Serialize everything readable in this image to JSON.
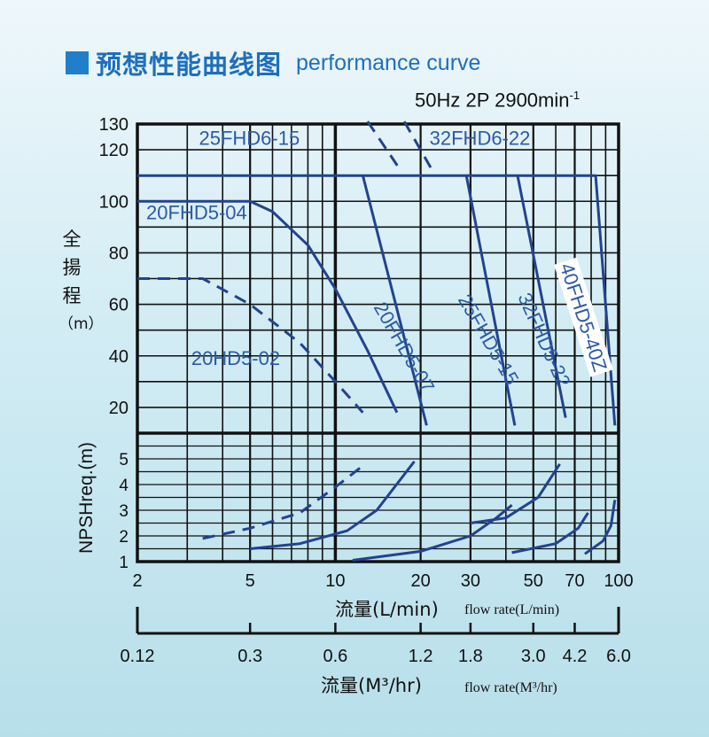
{
  "header": {
    "title_cn": "预想性能曲线图",
    "title_en": "performance curve",
    "condition_main": "50Hz 2P 2900min",
    "condition_sup": "-1"
  },
  "axes": {
    "head_label_chars": [
      "全",
      "揚",
      "程",
      "（m）"
    ],
    "npsh_label": "NPSHreq.(m)",
    "x1_label": "流量(L/min)",
    "x1_label_en": "flow rate(L/min)",
    "x2_label_cn": "流量(M³/hr)",
    "x2_label_en": "flow rate(M³/hr)"
  },
  "colors": {
    "curve": "#22438e",
    "label": "#2c5aa4",
    "grid": "#111111"
  },
  "chart_data": {
    "type": "line",
    "x_scale": "log",
    "xlim": [
      2,
      100
    ],
    "x_ticks": [
      2,
      5,
      10,
      20,
      30,
      50,
      70,
      100
    ],
    "x_tick_labels": [
      "2",
      "5",
      "10",
      "20",
      "30",
      "50",
      "70",
      "100"
    ],
    "x2_ticks": [
      0.12,
      0.3,
      0.6,
      1.2,
      1.8,
      3.0,
      4.2,
      6.0
    ],
    "x2_tick_labels": [
      "0.12",
      "0.3",
      "0.6",
      "1.2",
      "1.8",
      "3.0",
      "4.2",
      "6.0"
    ],
    "head_ylim": [
      10,
      130
    ],
    "head_ticks": [
      20,
      40,
      60,
      80,
      100,
      120,
      130
    ],
    "head_tick_labels": [
      "20",
      "40",
      "60",
      "80",
      "100",
      "120",
      "130"
    ],
    "npsh_ylim": [
      1,
      6
    ],
    "npsh_ticks": [
      1,
      2,
      3,
      4,
      5
    ],
    "npsh_tick_labels": [
      "1",
      "2",
      "3",
      "4",
      "5"
    ],
    "head_curves": [
      {
        "name": "20FHD5-04",
        "dashed": false,
        "points": [
          [
            2,
            100
          ],
          [
            5,
            100
          ],
          [
            6,
            96
          ],
          [
            8,
            83
          ],
          [
            10,
            66
          ],
          [
            13,
            42
          ],
          [
            16.5,
            18
          ]
        ]
      },
      {
        "name": "20HD5-02",
        "dashed": true,
        "points": [
          [
            2,
            70
          ],
          [
            3.4,
            70
          ],
          [
            5,
            60
          ],
          [
            7.5,
            45
          ],
          [
            10,
            30
          ],
          [
            12.5,
            18
          ]
        ]
      },
      {
        "name": "25FHD6-15",
        "dashed": true,
        "points": [
          [
            13,
            131
          ],
          [
            17,
            112
          ]
        ]
      },
      {
        "name": "32FHD6-22",
        "dashed": true,
        "points": [
          [
            17.5,
            131
          ],
          [
            22,
            112
          ]
        ]
      },
      {
        "name": "20FHD5-07",
        "dashed": false,
        "points": [
          [
            2,
            110
          ],
          [
            12.5,
            110
          ],
          [
            21,
            13
          ]
        ]
      },
      {
        "name": "25FHD5-15",
        "dashed": false,
        "points": [
          [
            12.5,
            110
          ],
          [
            29,
            110
          ],
          [
            43,
            13
          ]
        ]
      },
      {
        "name": "32FHD5-22",
        "dashed": false,
        "points": [
          [
            29,
            110
          ],
          [
            44,
            110
          ],
          [
            65,
            16
          ]
        ]
      },
      {
        "name": "40FHD5-40Z",
        "dashed": false,
        "points": [
          [
            44,
            110
          ],
          [
            83,
            110
          ],
          [
            97,
            13
          ]
        ]
      }
    ],
    "npsh_curves": [
      {
        "dashed": false,
        "points": [
          [
            5,
            1.5
          ],
          [
            7.5,
            1.7
          ],
          [
            11,
            2.2
          ],
          [
            14,
            3
          ],
          [
            19,
            4.9
          ]
        ]
      },
      {
        "dashed": true,
        "points": [
          [
            3.4,
            1.9
          ],
          [
            5,
            2.3
          ],
          [
            7.5,
            2.9
          ],
          [
            10,
            3.9
          ],
          [
            12.4,
            4.7
          ]
        ]
      },
      {
        "dashed": false,
        "points": [
          [
            11.5,
            1.05
          ],
          [
            20,
            1.4
          ],
          [
            30,
            2
          ],
          [
            37,
            2.7
          ],
          [
            42,
            3.2
          ]
        ]
      },
      {
        "dashed": false,
        "points": [
          [
            30,
            2.5
          ],
          [
            40,
            2.7
          ],
          [
            52,
            3.5
          ],
          [
            62,
            4.8
          ]
        ]
      },
      {
        "dashed": false,
        "points": [
          [
            42,
            1.35
          ],
          [
            60,
            1.7
          ],
          [
            72,
            2.3
          ],
          [
            78,
            2.9
          ]
        ]
      },
      {
        "dashed": false,
        "points": [
          [
            76,
            1.3
          ],
          [
            88,
            1.8
          ],
          [
            94,
            2.4
          ],
          [
            97,
            3.4
          ]
        ]
      }
    ],
    "annotations": [
      {
        "text": "25FHD6-15",
        "x": 3.3,
        "y": 122,
        "rotate": 0
      },
      {
        "text": "32FHD6-22",
        "x": 21.5,
        "y": 122,
        "rotate": 0
      },
      {
        "text": "20FHD5-04",
        "x": 2.15,
        "y": 93,
        "rotate": 0
      },
      {
        "text": "20HD5-02",
        "x": 3.1,
        "y": 36.5,
        "rotate": 0
      },
      {
        "text": "20FHD5-07",
        "x": 13.6,
        "y": 59,
        "rotate": 60
      },
      {
        "text": "25FHD5-15",
        "x": 27,
        "y": 62,
        "rotate": 60
      },
      {
        "text": "32FHD5-22",
        "x": 44,
        "y": 63,
        "rotate": 66
      },
      {
        "text": "40FHD5-40Z",
        "x": 62,
        "y": 75,
        "rotate": 72
      }
    ]
  }
}
